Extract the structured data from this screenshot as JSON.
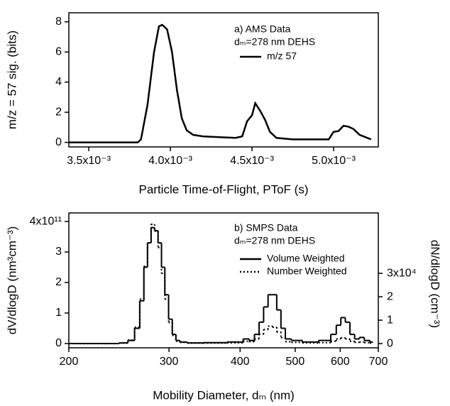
{
  "chart_data": [
    {
      "type": "line",
      "x_label": "Particle Time-of-Flight, PToF (s)",
      "y_label": "m/z = 57 sig. (bits)",
      "annotations": [
        "a) AMS Data",
        "dₘ=278 nm DEHS"
      ],
      "x": [
        0.00338,
        0.0036,
        0.0038,
        0.00382,
        0.00386,
        0.0039,
        0.00393,
        0.00395,
        0.00398,
        0.00401,
        0.00404,
        0.00407,
        0.0041,
        0.00414,
        0.0042,
        0.0043,
        0.0044,
        0.00444,
        0.00447,
        0.0045,
        0.00452,
        0.00455,
        0.00458,
        0.00461,
        0.00465,
        0.00475,
        0.00497,
        0.005,
        0.00503,
        0.00506,
        0.00509,
        0.00512,
        0.00516,
        0.00523
      ],
      "series": [
        {
          "name": "m/z 57",
          "color": "#000000",
          "values": [
            0,
            0,
            0,
            0.2,
            2.5,
            6,
            7.7,
            7.8,
            7.5,
            6,
            3.5,
            1.6,
            0.8,
            0.5,
            0.4,
            0.35,
            0.3,
            0.4,
            1.4,
            1.8,
            2.6,
            2.1,
            1.5,
            0.7,
            0.3,
            0.2,
            0.2,
            0.7,
            0.75,
            1.1,
            1.05,
            0.9,
            0.5,
            0.2
          ]
        }
      ],
      "xlim": [
        0.003378,
        0.005274
      ],
      "xticks": [
        {
          "value": 0.0035,
          "label": "3.5x10⁻³"
        },
        {
          "value": 0.004,
          "label": "4.0x10⁻³"
        },
        {
          "value": 0.0045,
          "label": "4.5x10⁻³"
        },
        {
          "value": 0.005,
          "label": "5.0x10⁻³"
        }
      ],
      "ylim": [
        -0.3,
        8.6
      ],
      "yticks": [
        0,
        2,
        4,
        6,
        8
      ]
    },
    {
      "type": "step",
      "x_label": "Mobility Diameter, dₘ (nm)",
      "y_label": "dV/dlogD (nm³cm⁻³)",
      "y2_label": "dN/dlogD  (cm⁻³)",
      "annotations": [
        "b) SMPS Data",
        "dₘ=278 nm DEHS"
      ],
      "xscale": "log",
      "x": [
        200,
        225,
        240,
        250,
        258,
        264,
        269,
        273,
        277,
        281,
        285,
        289,
        293,
        297,
        302,
        306,
        311,
        316,
        330,
        360,
        400,
        410,
        420,
        428,
        436,
        444,
        452,
        460,
        468,
        476,
        485,
        500,
        530,
        570,
        585,
        596,
        607,
        618,
        630,
        642,
        655,
        668,
        685
      ],
      "series": [
        {
          "name": "Volume Weighted",
          "color": "#000000",
          "linestyle": "solid",
          "values": [
            0,
            0,
            0,
            2000000000.0,
            10000000000.0,
            50000000000.0,
            140000000000.0,
            250000000000.0,
            330000000000.0,
            380000000000.0,
            370000000000.0,
            330000000000.0,
            250000000000.0,
            160000000000.0,
            80000000000.0,
            30000000000.0,
            10000000000.0,
            5000000000.0,
            2000000000.0,
            3000000000.0,
            5000000000.0,
            15000000000.0,
            10000000000.0,
            30000000000.0,
            70000000000.0,
            120000000000.0,
            160000000000.0,
            160000000000.0,
            110000000000.0,
            50000000000.0,
            15000000000.0,
            10000000000.0,
            5000000000.0,
            10000000000.0,
            30000000000.0,
            60000000000.0,
            85000000000.0,
            70000000000.0,
            30000000000.0,
            15000000000.0,
            20000000000.0,
            10000000000.0,
            5000000000.0
          ]
        },
        {
          "name": "Number Weighted",
          "color": "#000000",
          "linestyle": "dotted",
          "axis": "y2",
          "values": [
            0,
            0,
            0,
            200,
            1500,
            7000,
            19000,
            33000,
            43000,
            51000,
            48000,
            41000,
            30000,
            19000,
            9000,
            3500,
            1000,
            500,
            200,
            200,
            300,
            1000,
            800,
            2000,
            4000,
            6000,
            7500,
            7000,
            5000,
            2500,
            800,
            500,
            300,
            400,
            1000,
            2000,
            2500,
            2000,
            1000,
            500,
            700,
            400,
            200
          ]
        }
      ],
      "xlim": [
        200,
        700
      ],
      "xticks": [
        200,
        300,
        400,
        500,
        600,
        700
      ],
      "ylim": [
        -14000000000,
        428000000000
      ],
      "yticks": [
        0,
        {
          "value": 100000000000,
          "label": "1"
        },
        {
          "value": 200000000000,
          "label": "2"
        },
        {
          "value": 300000000000,
          "label": "3"
        },
        {
          "value": 400000000000,
          "label": "4x10¹¹"
        }
      ],
      "y2lim": [
        -1800,
        55800
      ],
      "y2ticks": [
        0,
        {
          "value": 10000,
          "label": "1"
        },
        {
          "value": 20000,
          "label": "2"
        },
        {
          "value": 30000,
          "label": "3x10⁴"
        }
      ]
    }
  ]
}
